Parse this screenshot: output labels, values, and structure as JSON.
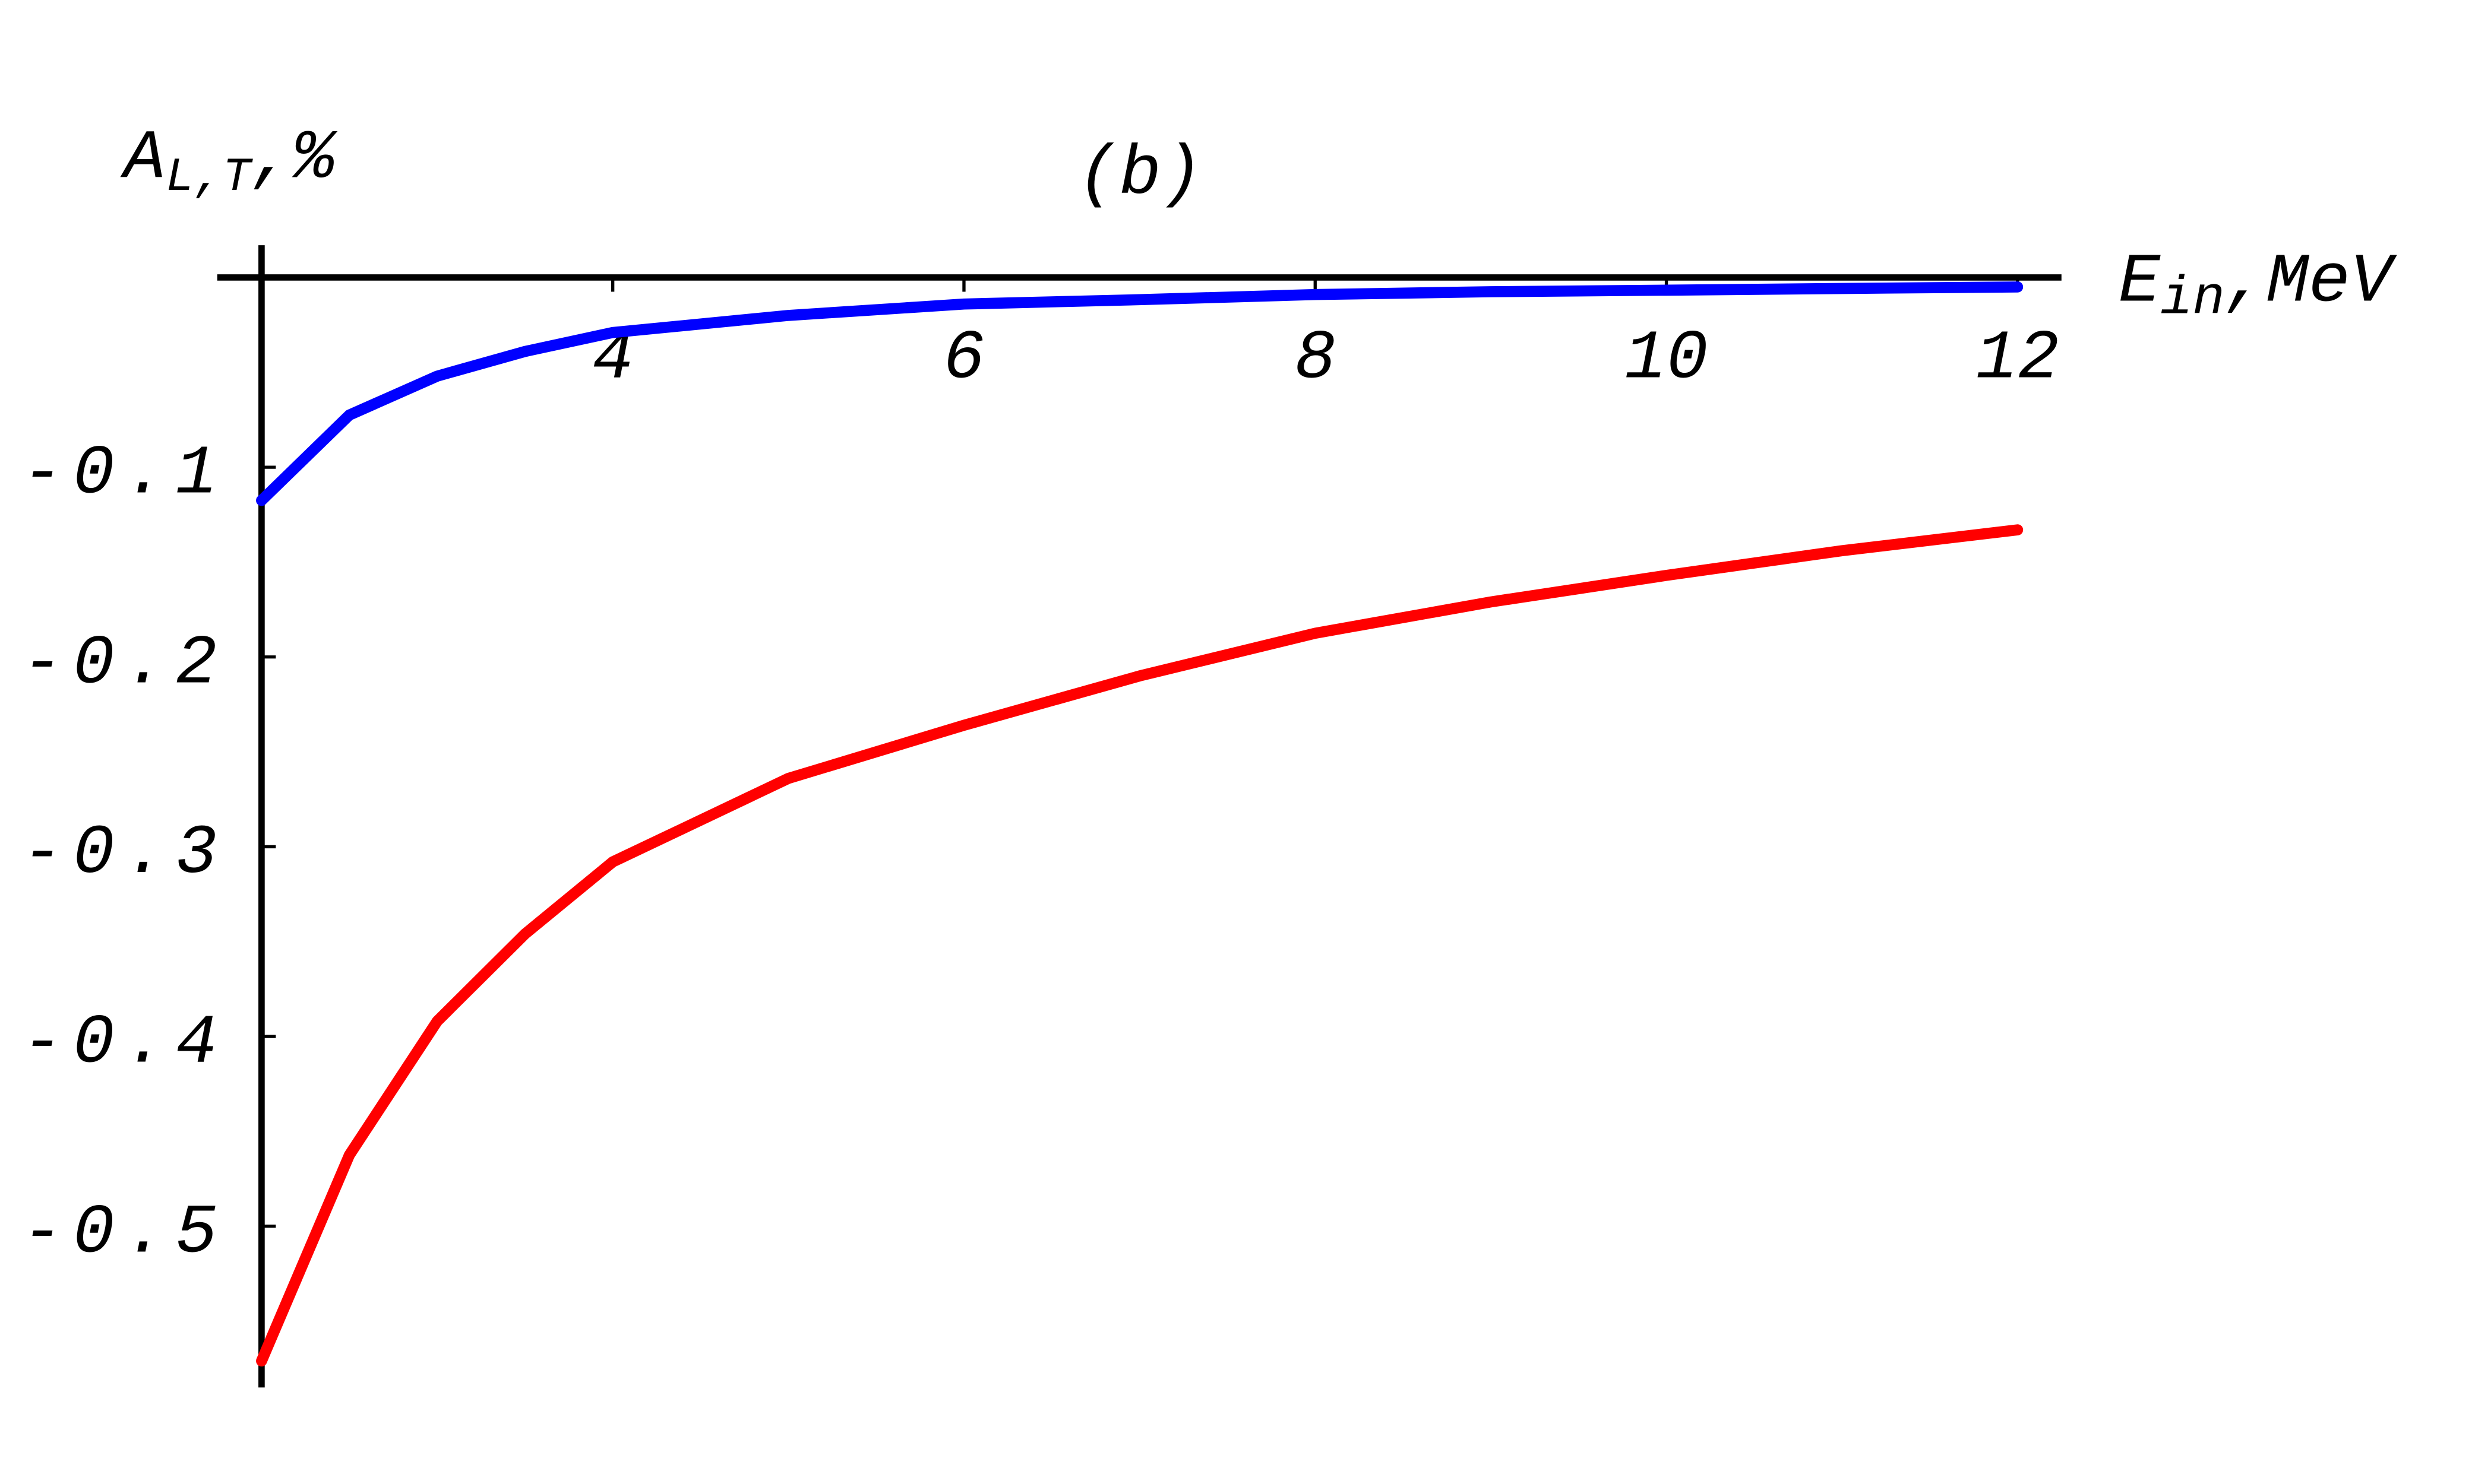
{
  "chart_data": {
    "type": "line",
    "annotation": "(b)",
    "y_label": {
      "main": "A",
      "sub": "L,T",
      "suffix": ",%"
    },
    "x_label": {
      "main": "E",
      "sub": "in",
      "suffix": ",MeV"
    },
    "x": [
      2,
      2.5,
      3,
      3.5,
      4,
      5,
      6,
      7,
      8,
      9,
      10,
      11,
      12
    ],
    "series": [
      {
        "color": "#0000ff",
        "values": [
          -0.1175,
          -0.0725,
          -0.052,
          -0.039,
          -0.029,
          -0.02,
          -0.014,
          -0.0117,
          -0.009,
          -0.0075,
          -0.0067,
          -0.0058,
          -0.005
        ]
      },
      {
        "color": "#ff0000",
        "values": [
          -0.571,
          -0.4625,
          -0.392,
          -0.346,
          -0.308,
          -0.264,
          -0.236,
          -0.21,
          -0.1875,
          -0.171,
          -0.157,
          -0.144,
          -0.133
        ]
      }
    ],
    "xlim": [
      2,
      12.25
    ],
    "ylim": [
      -0.585,
      0.017
    ],
    "xticks": [
      4,
      6,
      8,
      10,
      12
    ],
    "yticks": [
      -0.5,
      -0.4,
      -0.3,
      -0.2,
      -0.1
    ]
  }
}
